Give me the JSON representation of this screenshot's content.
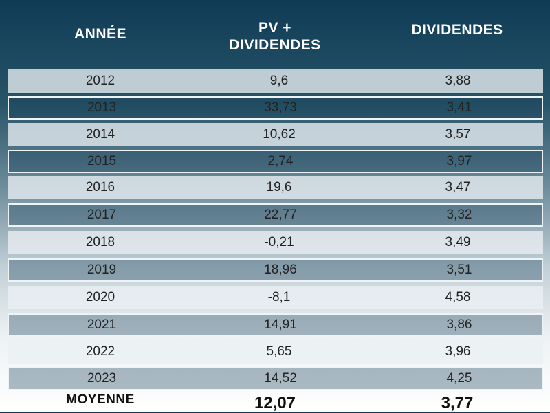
{
  "headers": {
    "year": "ANNÉE",
    "pv_line1": "PV +",
    "pv_line2": "DIVIDENDES",
    "dividends": "DIVIDENDES"
  },
  "rows": [
    {
      "year": "2012",
      "pv": "9,6",
      "div": "3,88"
    },
    {
      "year": "2013",
      "pv": "33,73",
      "div": "3,41"
    },
    {
      "year": "2014",
      "pv": "10,62",
      "div": "3,57"
    },
    {
      "year": "2015",
      "pv": "2,74",
      "div": "3,97"
    },
    {
      "year": "2016",
      "pv": "19,6",
      "div": "3,47"
    },
    {
      "year": "2017",
      "pv": "22,77",
      "div": "3,32"
    },
    {
      "year": "2018",
      "pv": "-0,21",
      "div": "3,49"
    },
    {
      "year": "2019",
      "pv": "18,96",
      "div": "3,51"
    },
    {
      "year": "2020",
      "pv": "-8,1",
      "div": "4,58"
    },
    {
      "year": "2021",
      "pv": "14,91",
      "div": "3,86"
    },
    {
      "year": "2022",
      "pv": "5,65",
      "div": "3,96"
    },
    {
      "year": "2023",
      "pv": "14,52",
      "div": "4,25"
    }
  ],
  "average": {
    "label": "MOYENNE",
    "pv": "12,07",
    "div": "3,77"
  }
}
